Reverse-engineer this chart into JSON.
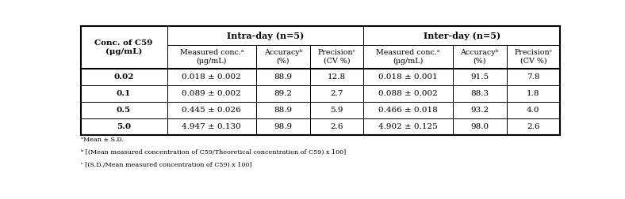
{
  "col0_header": "Conc. of C59\n(μg/mL)",
  "intraday_header": "Intra-day (n=5)",
  "interday_header": "Inter-day (n=5)",
  "sub_headers_intra": [
    "Measured conc.ᵃ\n(μg/mL)",
    "Accuracyᵇ\n(%)",
    "Precisionᶜ\n(CV %)"
  ],
  "sub_headers_inter": [
    "Measured conc.ᵃ\n(μg/mL)",
    "Accuracyᵇ\n(%)",
    "Precisionᶜ\n(CV %)"
  ],
  "conc": [
    "0.02",
    "0.1",
    "0.5",
    "5.0"
  ],
  "intraday_measured": [
    "0.018 ± 0.002",
    "0.089 ± 0.002",
    "0.445 ± 0.026",
    "4.947 ± 0.130"
  ],
  "intraday_accuracy": [
    "88.9",
    "89.2",
    "88.9",
    "98.9"
  ],
  "intraday_precision": [
    "12.8",
    "2.7",
    "5.9",
    "2.6"
  ],
  "interday_measured": [
    "0.018 ± 0.001",
    "0.088 ± 0.002",
    "0.466 ± 0.018",
    "4.902 ± 0.125"
  ],
  "interday_accuracy": [
    "91.5",
    "88.3",
    "93.2",
    "98.0"
  ],
  "interday_precision": [
    "7.8",
    "1.8",
    "4.0",
    "2.6"
  ],
  "footnote1": "ᵃMean ± S.D.",
  "footnote2": "ᵇ [(Mean measured concentration of C59/Theoretical concentration of C59) x 100]",
  "footnote3": "ᶜ [(S.D./Mean measured concentration of C59) x 100]"
}
